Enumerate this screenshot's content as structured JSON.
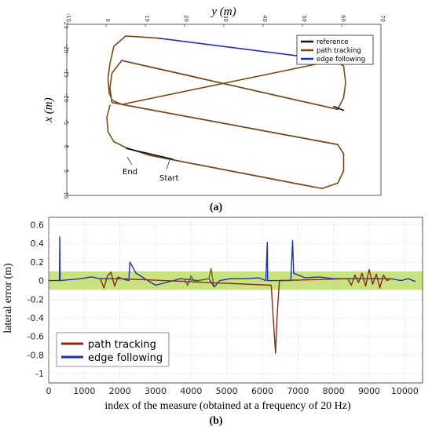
{
  "colors": {
    "reference": "#111111",
    "path_tracking": "#7a4a12",
    "path_tracking_b": "#8b2a12",
    "edge_following": "#1f2fb8",
    "band": "#c8e27f",
    "frame": "#555555"
  },
  "chart_data": [
    {
      "type": "line",
      "panel_label": "(a)",
      "xlabel": "y (m)",
      "ylabel": "x (m)",
      "xlim": [
        -10,
        70
      ],
      "ylim": [
        -25,
        10
      ],
      "y_inverted": true,
      "xticks": [
        "-10",
        "0",
        "10",
        "20",
        "30",
        "40",
        "50",
        "60",
        "70"
      ],
      "yticks": [
        "-25",
        "-20",
        "-15",
        "-10",
        "-5",
        "0",
        "5",
        "10"
      ],
      "legend": {
        "position": "top-right",
        "entries": [
          "reference",
          "path tracking",
          "edge following"
        ]
      },
      "annotations": [
        {
          "text": "End",
          "y": 11,
          "x": 5.2
        },
        {
          "text": "Start",
          "y": 17,
          "x": 6.8
        }
      ],
      "series": [
        {
          "name": "edge following",
          "color": "#1f2fb8",
          "points": [
            [
              13,
              -22.2
            ],
            [
              58,
              -17.6
            ],
            [
              4,
              -17.6
            ],
            [
              59,
              -7.6
            ],
            [
              4,
              -8.6
            ],
            [
              59,
              -0.4
            ],
            [
              11,
              1.8
            ],
            [
              53,
              8.3
            ]
          ]
        },
        {
          "name": "path tracking",
          "color": "#7a4a12",
          "points": [
            [
              13,
              -22.2
            ],
            [
              5,
              -22.6
            ],
            [
              2,
              -20.5
            ],
            [
              1,
              -17
            ],
            [
              0.5,
              -14
            ],
            [
              0.8,
              -11
            ],
            [
              1.5,
              -9.5
            ],
            [
              4,
              -8.6
            ],
            [
              58,
              -17.6
            ],
            [
              60.5,
              -16.5
            ],
            [
              61,
              -13
            ],
            [
              60.5,
              -10
            ],
            [
              59,
              -7.6
            ],
            [
              4,
              -17.6
            ],
            [
              1.5,
              -15
            ],
            [
              1,
              -12
            ],
            [
              1.5,
              -9
            ],
            [
              59,
              -0.4
            ],
            [
              60.5,
              1.5
            ],
            [
              60.5,
              5
            ],
            [
              59,
              7.5
            ],
            [
              55,
              8.6
            ],
            [
              53,
              8.3
            ],
            [
              11,
              1.8
            ],
            [
              5,
              0.2
            ],
            [
              2,
              -1
            ],
            [
              0.5,
              -3
            ],
            [
              0.2,
              -6
            ],
            [
              1,
              -8.4
            ]
          ]
        },
        {
          "name": "reference",
          "color": "#111111",
          "points": [
            [
              5.2,
              0.4
            ],
            [
              17,
              2.6
            ],
            [
              58,
              -8.2
            ],
            [
              60.5,
              -7.4
            ]
          ]
        }
      ]
    },
    {
      "type": "line",
      "panel_label": "(b)",
      "xlabel": "index of the measure (obtained at a frequency of 20 Hz)",
      "ylabel": "lateral error (m)",
      "xlim": [
        0,
        10500
      ],
      "ylim": [
        -1.1,
        0.68
      ],
      "xticks": [
        0,
        1000,
        2000,
        3000,
        4000,
        5000,
        6000,
        7000,
        8000,
        9000,
        10000
      ],
      "yticks": [
        0.6,
        0.4,
        0.2,
        0,
        -0.2,
        -0.4,
        -0.6,
        -0.8,
        -1
      ],
      "band": [
        -0.1,
        0.1
      ],
      "legend": {
        "position": "bottom-left",
        "entries": [
          "path tracking",
          "edge following"
        ]
      },
      "series": [
        {
          "name": "edge following",
          "color": "#1f2fb8",
          "points": [
            [
              0,
              0
            ],
            [
              300,
              0
            ],
            [
              310,
              0.47
            ],
            [
              320,
              0
            ],
            [
              600,
              0.01
            ],
            [
              900,
              0.02
            ],
            [
              1200,
              0.04
            ],
            [
              1450,
              0.02
            ],
            [
              2050,
              0.02
            ],
            [
              2250,
              0.0
            ],
            [
              2280,
              0.2
            ],
            [
              2450,
              0.08
            ],
            [
              2700,
              0.02
            ],
            [
              3000,
              -0.05
            ],
            [
              3300,
              -0.02
            ],
            [
              3700,
              0.02
            ],
            [
              4200,
              0.0
            ],
            [
              4500,
              0.02
            ],
            [
              4650,
              -0.07
            ],
            [
              4800,
              0.0
            ],
            [
              5100,
              0.02
            ],
            [
              5500,
              0.02
            ],
            [
              5900,
              0.03
            ],
            [
              6100,
              0.0
            ],
            [
              6140,
              0.41
            ],
            [
              6150,
              0.0
            ],
            [
              6300,
              0.0
            ],
            [
              6500,
              0.0
            ],
            [
              6800,
              0.0
            ],
            [
              6850,
              0.43
            ],
            [
              6880,
              0.08
            ],
            [
              7200,
              0.03
            ],
            [
              7600,
              0.04
            ],
            [
              8000,
              0.02
            ],
            [
              8400,
              0.02
            ],
            [
              9600,
              0.02
            ],
            [
              9900,
              0.0
            ],
            [
              10100,
              0.02
            ],
            [
              10300,
              -0.01
            ]
          ]
        },
        {
          "name": "path tracking",
          "color": "#8b2a12",
          "points": [
            [
              1450,
              0.02
            ],
            [
              1550,
              -0.08
            ],
            [
              1650,
              0.05
            ],
            [
              1750,
              0.09
            ],
            [
              1850,
              -0.06
            ],
            [
              1950,
              0.04
            ],
            [
              2050,
              0.02
            ],
            [
              6250,
              -0.05
            ],
            [
              6330,
              -0.55
            ],
            [
              6370,
              -0.78
            ],
            [
              6420,
              -0.35
            ],
            [
              6480,
              0.0
            ],
            [
              8400,
              0.02
            ],
            [
              8500,
              -0.05
            ],
            [
              8600,
              0.06
            ],
            [
              8700,
              -0.02
            ],
            [
              8800,
              0.08
            ],
            [
              8900,
              -0.06
            ],
            [
              9000,
              0.12
            ],
            [
              9100,
              -0.04
            ],
            [
              9200,
              0.07
            ],
            [
              9300,
              -0.08
            ],
            [
              9400,
              0.06
            ],
            [
              9500,
              0.0
            ],
            [
              9600,
              0.02
            ]
          ]
        },
        {
          "name": "path tracking olive",
          "color": "#6b6a10",
          "points": [
            [
              3800,
              0.02
            ],
            [
              3900,
              -0.05
            ],
            [
              4000,
              0.05
            ],
            [
              4100,
              -0.02
            ],
            [
              4200,
              0.0
            ],
            [
              4500,
              0.02
            ],
            [
              4560,
              0.13
            ],
            [
              4600,
              0.03
            ],
            [
              4650,
              -0.07
            ]
          ]
        }
      ]
    }
  ]
}
